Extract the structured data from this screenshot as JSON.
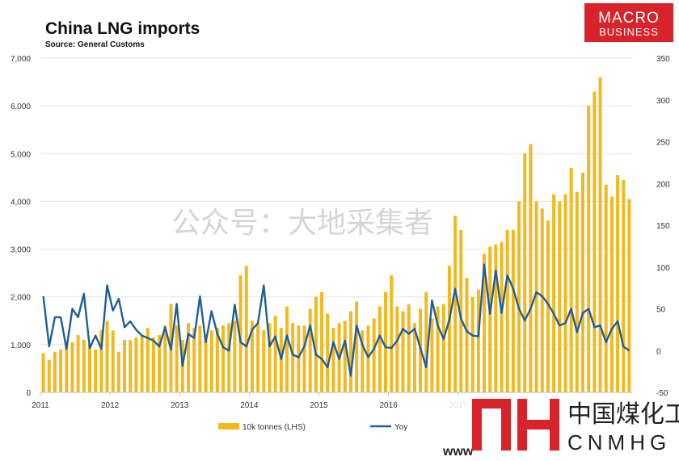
{
  "chart_data": {
    "type": "bar",
    "title": "China LNG imports",
    "subtitle": "Source: General Customs",
    "x_tick_labels": [
      "2011",
      "2012",
      "2013",
      "2014",
      "2015",
      "2016",
      "2017"
    ],
    "y_left": {
      "ylim": [
        0,
        7000
      ],
      "ticks": [
        "0",
        "1,000",
        "2,000",
        "3,000",
        "4,000",
        "5,000",
        "6,000",
        "7,000"
      ]
    },
    "y_right": {
      "ylim": [
        -50,
        350
      ],
      "ticks": [
        "-50",
        "0",
        "50",
        "100",
        "150",
        "200",
        "250",
        "300",
        "350"
      ]
    },
    "grid": true,
    "legend_position": "bottom",
    "series": [
      {
        "name": "10k tonnes (LHS)",
        "kind": "bar",
        "axis": "left",
        "color": "#f2b81d",
        "values": [
          820,
          680,
          850,
          900,
          1000,
          1050,
          1200,
          1100,
          1000,
          900,
          1300,
          1500,
          1300,
          850,
          1100,
          1100,
          1150,
          1200,
          1350,
          1150,
          1200,
          1400,
          1850,
          1400,
          1100,
          1450,
          1350,
          1400,
          1200,
          1300,
          1350,
          1400,
          1450,
          1500,
          2450,
          2650,
          1500,
          1450,
          1300,
          1450,
          1600,
          1350,
          1800,
          1450,
          1400,
          1400,
          1750,
          2000,
          2100,
          1650,
          1350,
          1450,
          1500,
          1700,
          1900,
          1300,
          1400,
          1550,
          1800,
          2100,
          2450,
          1800,
          1700,
          1850,
          1450,
          1750,
          2100,
          1550,
          1800,
          1850,
          2650,
          3700,
          3400,
          2400,
          2000,
          2150,
          2900,
          3050,
          3100,
          3150,
          3400,
          3400,
          4000,
          5000,
          5200,
          4000,
          3850,
          3600,
          4150,
          4000,
          4150,
          4700,
          4200,
          4600,
          6000,
          6300,
          6600,
          4350,
          4100,
          4550,
          4450,
          4050
        ],
        "note": "monthly values Jan-2011 to Jun-2019, estimated from chart"
      },
      {
        "name": "Yoy",
        "kind": "line",
        "axis": "right",
        "color": "#1f5f95",
        "values": [
          65,
          5,
          40,
          40,
          2,
          50,
          40,
          68,
          3,
          18,
          2,
          78,
          48,
          62,
          28,
          35,
          25,
          18,
          15,
          12,
          5,
          28,
          1,
          56,
          -18,
          20,
          15,
          65,
          10,
          47,
          20,
          4,
          0,
          55,
          10,
          5,
          25,
          33,
          78,
          5,
          17,
          -10,
          18,
          -5,
          -8,
          5,
          30,
          -5,
          -10,
          -20,
          10,
          -10,
          12,
          -30,
          30,
          7,
          -8,
          2,
          18,
          4,
          3,
          12,
          26,
          20,
          26,
          3,
          -20,
          60,
          30,
          14,
          37,
          74,
          38,
          23,
          18,
          17,
          103,
          44,
          96,
          45,
          90,
          74,
          50,
          36,
          50,
          70,
          65,
          56,
          44,
          30,
          33,
          50,
          22,
          45,
          50,
          28,
          30,
          10,
          26,
          35,
          5,
          0
        ]
      }
    ]
  },
  "logo": {
    "line1": "MACRO",
    "line2": "BUSINESS",
    "color": "#d8232a"
  },
  "watermark": {
    "text": "公众号：大地采集者"
  },
  "brand": {
    "cn": "中国煤化工",
    "latin": "CNMHG",
    "prefix": "www",
    "color": "#d8232a"
  }
}
